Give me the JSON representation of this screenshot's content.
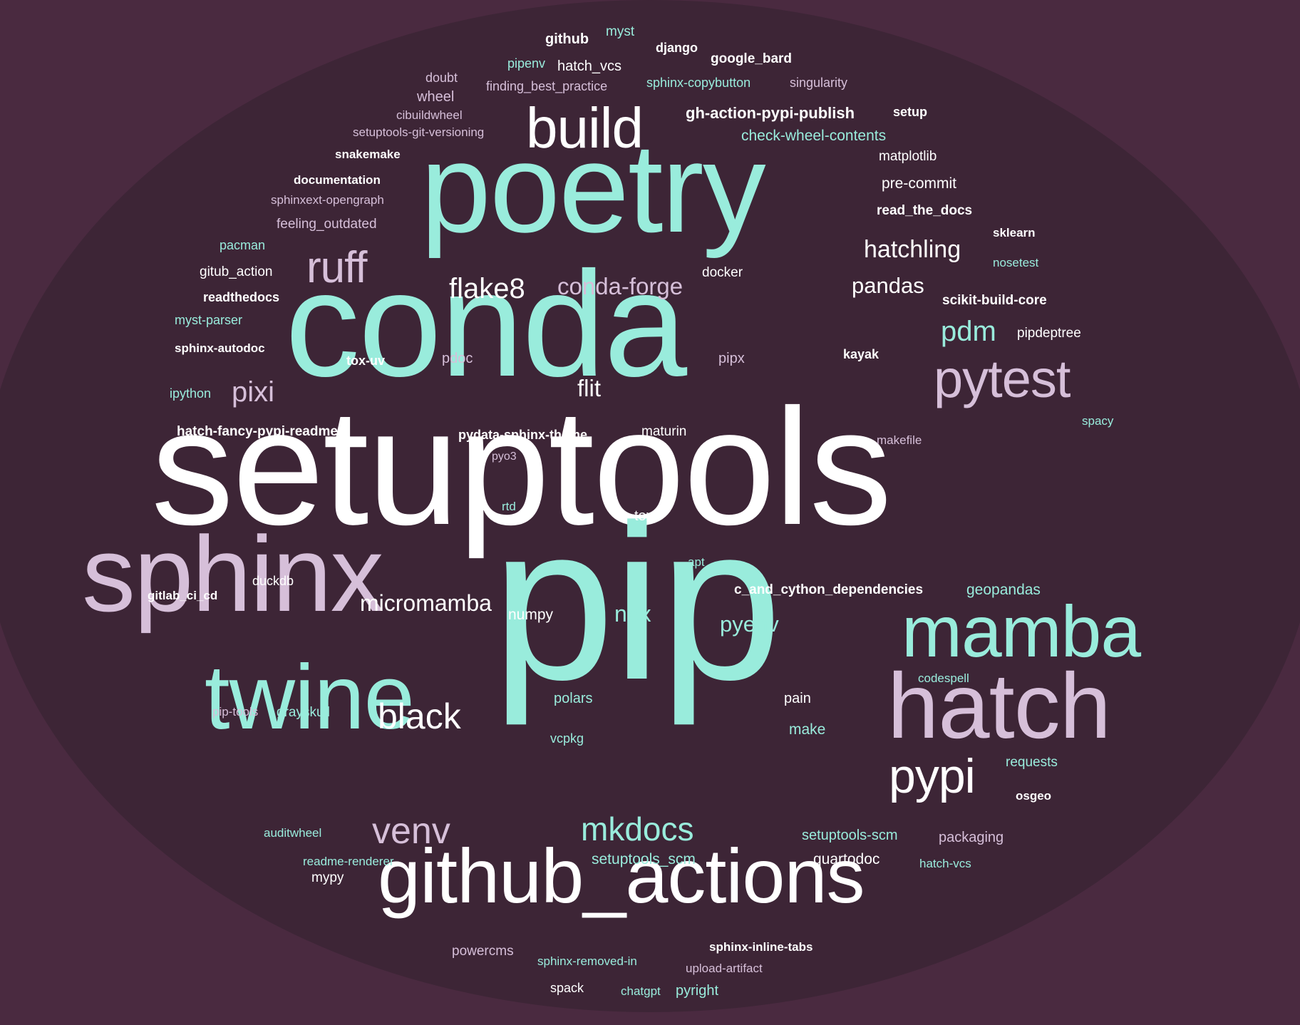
{
  "colors": {
    "background": "#4a2a40",
    "cloud": "#3d2536",
    "white": "#ffffff",
    "teal": "#99ecdc",
    "lavender": "#d6bfd9"
  },
  "words": [
    {
      "id": "setuptools",
      "text": "setuptools",
      "color": "white"
    },
    {
      "id": "pip",
      "text": "pip",
      "color": "teal"
    },
    {
      "id": "conda",
      "text": "conda",
      "color": "teal"
    },
    {
      "id": "poetry",
      "text": "poetry",
      "color": "teal"
    },
    {
      "id": "sphinx",
      "text": "sphinx",
      "color": "lavender"
    },
    {
      "id": "github-actions",
      "text": "github_actions",
      "color": "white"
    },
    {
      "id": "twine",
      "text": "twine",
      "color": "teal"
    },
    {
      "id": "hatch",
      "text": "hatch",
      "color": "lavender"
    },
    {
      "id": "mamba",
      "text": "mamba",
      "color": "teal"
    },
    {
      "id": "build",
      "text": "build",
      "color": "white"
    },
    {
      "id": "pytest",
      "text": "pytest",
      "color": "lavender"
    },
    {
      "id": "ruff",
      "text": "ruff",
      "color": "lavender"
    },
    {
      "id": "pypi",
      "text": "pypi",
      "color": "white"
    },
    {
      "id": "venv",
      "text": "venv",
      "color": "lavender"
    },
    {
      "id": "black",
      "text": "black",
      "color": "white"
    },
    {
      "id": "mkdocs",
      "text": "mkdocs",
      "color": "teal"
    },
    {
      "id": "micromamba",
      "text": "micromamba",
      "color": "white"
    },
    {
      "id": "flake8",
      "text": "flake8",
      "color": "white"
    },
    {
      "id": "conda-forge",
      "text": "conda-forge",
      "color": "lavender"
    },
    {
      "id": "pixi",
      "text": "pixi",
      "color": "lavender"
    },
    {
      "id": "pdm",
      "text": "pdm",
      "color": "teal"
    },
    {
      "id": "hatchling",
      "text": "hatchling",
      "color": "white"
    },
    {
      "id": "pandas",
      "text": "pandas",
      "color": "white"
    },
    {
      "id": "nox",
      "text": "nox",
      "color": "teal"
    },
    {
      "id": "pyenv",
      "text": "pyenv",
      "color": "teal"
    },
    {
      "id": "flit",
      "text": "flit",
      "color": "white"
    },
    {
      "id": "github",
      "text": "github",
      "color": "white"
    },
    {
      "id": "myst",
      "text": "myst",
      "color": "teal"
    },
    {
      "id": "django",
      "text": "django",
      "color": "white"
    },
    {
      "id": "google-bard",
      "text": "google_bard",
      "color": "white"
    },
    {
      "id": "pipenv",
      "text": "pipenv",
      "color": "teal"
    },
    {
      "id": "hatch-vcs-underscore",
      "text": "hatch_vcs",
      "color": "white"
    },
    {
      "id": "doubt",
      "text": "doubt",
      "color": "lavender"
    },
    {
      "id": "finding-best-practice",
      "text": "finding_best_practice",
      "color": "lavender"
    },
    {
      "id": "sphinx-copybutton",
      "text": "sphinx-copybutton",
      "color": "teal"
    },
    {
      "id": "singularity",
      "text": "singularity",
      "color": "lavender"
    },
    {
      "id": "wheel",
      "text": "wheel",
      "color": "lavender"
    },
    {
      "id": "cibuildwheel",
      "text": "cibuildwheel",
      "color": "lavender"
    },
    {
      "id": "gh-action-pypi-publish",
      "text": "gh-action-pypi-publish",
      "color": "white"
    },
    {
      "id": "setup",
      "text": "setup",
      "color": "white"
    },
    {
      "id": "setuptools-git-versioning",
      "text": "setuptools-git-versioning",
      "color": "lavender"
    },
    {
      "id": "check-wheel-contents",
      "text": "check-wheel-contents",
      "color": "teal"
    },
    {
      "id": "snakemake",
      "text": "snakemake",
      "color": "white"
    },
    {
      "id": "matplotlib",
      "text": "matplotlib",
      "color": "white"
    },
    {
      "id": "documentation",
      "text": "documentation",
      "color": "white"
    },
    {
      "id": "pre-commit",
      "text": "pre-commit",
      "color": "white"
    },
    {
      "id": "sphinxext-opengraph",
      "text": "sphinxext-opengraph",
      "color": "lavender"
    },
    {
      "id": "read-the-docs",
      "text": "read_the_docs",
      "color": "white"
    },
    {
      "id": "feeling-outdated",
      "text": "feeling_outdated",
      "color": "lavender"
    },
    {
      "id": "sklearn",
      "text": "sklearn",
      "color": "white"
    },
    {
      "id": "pacman",
      "text": "pacman",
      "color": "teal"
    },
    {
      "id": "nosetest",
      "text": "nosetest",
      "color": "teal"
    },
    {
      "id": "gitub-action",
      "text": "gitub_action",
      "color": "white"
    },
    {
      "id": "docker",
      "text": "docker",
      "color": "white"
    },
    {
      "id": "readthedocs",
      "text": "readthedocs",
      "color": "white"
    },
    {
      "id": "scikit-build-core",
      "text": "scikit-build-core",
      "color": "white"
    },
    {
      "id": "myst-parser",
      "text": "myst-parser",
      "color": "teal"
    },
    {
      "id": "pipdeptree",
      "text": "pipdeptree",
      "color": "white"
    },
    {
      "id": "sphinx-autodoc",
      "text": "sphinx-autodoc",
      "color": "white"
    },
    {
      "id": "tox-uv",
      "text": "tox-uv",
      "color": "white"
    },
    {
      "id": "pdoc",
      "text": "pdoc",
      "color": "lavender"
    },
    {
      "id": "pipx",
      "text": "pipx",
      "color": "lavender"
    },
    {
      "id": "kayak",
      "text": "kayak",
      "color": "white"
    },
    {
      "id": "ipython",
      "text": "ipython",
      "color": "teal"
    },
    {
      "id": "hatch-fancy-pypi-readme",
      "text": "hatch-fancy-pypi-readme",
      "color": "white"
    },
    {
      "id": "pydata-sphinx-theme",
      "text": "pydata-sphinx-theme",
      "color": "white"
    },
    {
      "id": "maturin",
      "text": "maturin",
      "color": "white"
    },
    {
      "id": "makefile",
      "text": "makefile",
      "color": "lavender"
    },
    {
      "id": "spacy",
      "text": "spacy",
      "color": "teal"
    },
    {
      "id": "pyo3",
      "text": "pyo3",
      "color": "lavender"
    },
    {
      "id": "rtd",
      "text": "rtd",
      "color": "teal"
    },
    {
      "id": "tox",
      "text": "tox",
      "color": "white"
    },
    {
      "id": "apt",
      "text": "apt",
      "color": "teal"
    },
    {
      "id": "duckdb",
      "text": "duckdb",
      "color": "white"
    },
    {
      "id": "gitlab-ci-cd",
      "text": "gitlab_ci_cd",
      "color": "white"
    },
    {
      "id": "c-and-cython-dependencies",
      "text": "c_and_cython_dependencies",
      "color": "white"
    },
    {
      "id": "geopandas",
      "text": "geopandas",
      "color": "teal"
    },
    {
      "id": "numpy",
      "text": "numpy",
      "color": "white"
    },
    {
      "id": "codespell",
      "text": "codespell",
      "color": "teal"
    },
    {
      "id": "polars",
      "text": "polars",
      "color": "teal"
    },
    {
      "id": "pain",
      "text": "pain",
      "color": "white"
    },
    {
      "id": "pip-tools",
      "text": "pip-tools",
      "color": "lavender"
    },
    {
      "id": "grayskull",
      "text": "grayskull",
      "color": "teal"
    },
    {
      "id": "make",
      "text": "make",
      "color": "teal"
    },
    {
      "id": "vcpkg",
      "text": "vcpkg",
      "color": "teal"
    },
    {
      "id": "requests",
      "text": "requests",
      "color": "teal"
    },
    {
      "id": "osgeo",
      "text": "osgeo",
      "color": "white"
    },
    {
      "id": "auditwheel",
      "text": "auditwheel",
      "color": "teal"
    },
    {
      "id": "setuptools-scm-dash",
      "text": "setuptools-scm",
      "color": "teal"
    },
    {
      "id": "packaging",
      "text": "packaging",
      "color": "lavender"
    },
    {
      "id": "setuptools-scm-underscore",
      "text": "setuptools_scm",
      "color": "teal"
    },
    {
      "id": "quartodoc",
      "text": "quartodoc",
      "color": "white"
    },
    {
      "id": "readme-renderer",
      "text": "readme-renderer",
      "color": "teal"
    },
    {
      "id": "hatch-vcs-dash",
      "text": "hatch-vcs",
      "color": "teal"
    },
    {
      "id": "mypy",
      "text": "mypy",
      "color": "white"
    },
    {
      "id": "powercms",
      "text": "powercms",
      "color": "lavender"
    },
    {
      "id": "sphinx-inline-tabs",
      "text": "sphinx-inline-tabs",
      "color": "white"
    },
    {
      "id": "sphinx-removed-in",
      "text": "sphinx-removed-in",
      "color": "teal"
    },
    {
      "id": "upload-artifact",
      "text": "upload-artifact",
      "color": "lavender"
    },
    {
      "id": "spack",
      "text": "spack",
      "color": "white"
    },
    {
      "id": "chatgpt",
      "text": "chatgpt",
      "color": "teal"
    },
    {
      "id": "pyright",
      "text": "pyright",
      "color": "teal"
    }
  ]
}
